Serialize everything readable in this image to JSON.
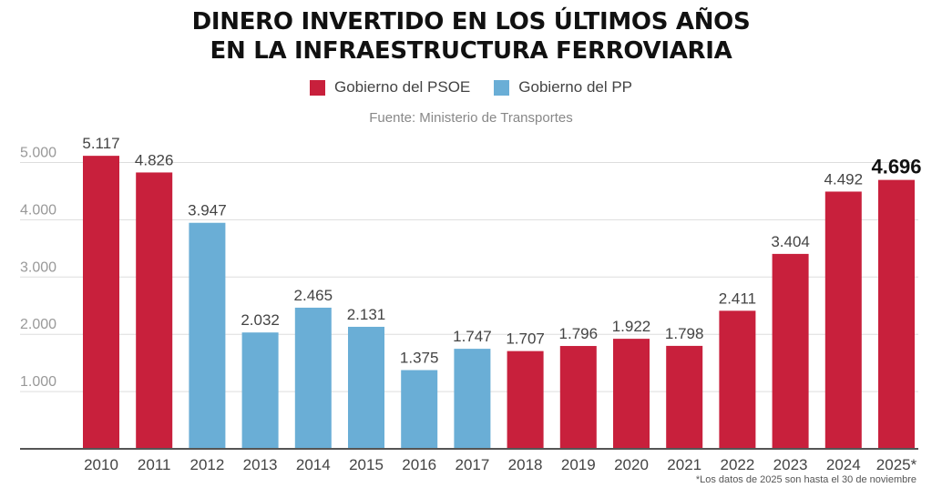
{
  "chart_data": {
    "type": "bar",
    "title_line1": "DINERO INVERTIDO EN LOS ÚLTIMOS AÑOS",
    "title_line2": "EN LA INFRAESTRUCTURA FERROVIARIA",
    "source": "Fuente: Ministerio de Transportes",
    "footnote": "*Los datos de 2025 son hasta el 30 de noviembre",
    "legend": [
      {
        "label": "Gobierno del PSOE",
        "color": "#c8203c"
      },
      {
        "label": "Gobierno del PP",
        "color": "#6aaed6"
      }
    ],
    "categories": [
      "2010",
      "2011",
      "2012",
      "2013",
      "2014",
      "2015",
      "2016",
      "2017",
      "2018",
      "2019",
      "2020",
      "2021",
      "2022",
      "2023",
      "2024",
      "2025*"
    ],
    "values": [
      5117,
      4826,
      3947,
      2032,
      2465,
      2131,
      1375,
      1747,
      1707,
      1796,
      1922,
      1798,
      2411,
      3404,
      4492,
      4696
    ],
    "value_labels": [
      "5.117",
      "4.826",
      "3.947",
      "2.032",
      "2.465",
      "2.131",
      "1.375",
      "1.747",
      "1.707",
      "1.796",
      "1.922",
      "1.798",
      "2.411",
      "3.404",
      "4.492",
      "4.696"
    ],
    "government": [
      "PSOE",
      "PSOE",
      "PP",
      "PP",
      "PP",
      "PP",
      "PP",
      "PP",
      "PSOE",
      "PSOE",
      "PSOE",
      "PSOE",
      "PSOE",
      "PSOE",
      "PSOE",
      "PSOE"
    ],
    "highlight_index": 15,
    "yticks": [
      1000,
      2000,
      3000,
      4000,
      5000
    ],
    "ytick_labels": [
      "1.000",
      "2.000",
      "3.000",
      "4.000",
      "5.000"
    ],
    "ylim": [
      0,
      5200
    ],
    "grid": true,
    "legend_position": "top-center",
    "xlabel": "",
    "ylabel": ""
  }
}
